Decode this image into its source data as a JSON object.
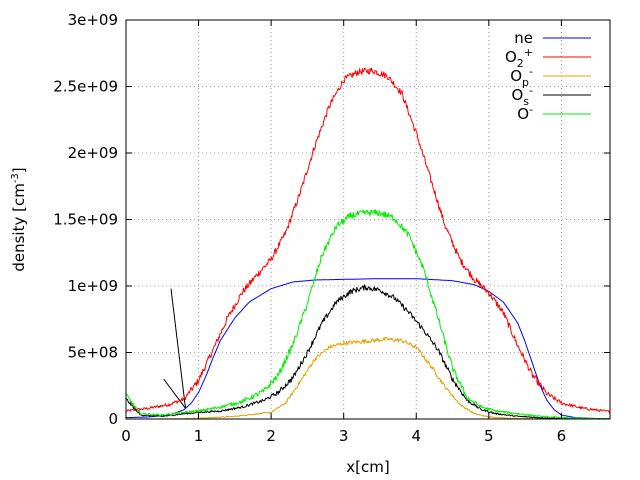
{
  "chart_data": {
    "type": "line",
    "title": "",
    "xlabel": "x[cm]",
    "ylabel": {
      "prefix": "density [cm",
      "sup": "-3",
      "suffix": "]"
    },
    "xlim": [
      0,
      6.67
    ],
    "ylim": [
      0,
      3000000000
    ],
    "grid": true,
    "legend_position": "top-right",
    "xticks": [
      {
        "value": 0,
        "label": "0"
      },
      {
        "value": 1,
        "label": "1"
      },
      {
        "value": 2,
        "label": "2"
      },
      {
        "value": 3,
        "label": "3"
      },
      {
        "value": 4,
        "label": "4"
      },
      {
        "value": 5,
        "label": "5"
      },
      {
        "value": 6,
        "label": "6"
      }
    ],
    "yticks": [
      {
        "value": 0,
        "label": "0"
      },
      {
        "value": 500000000,
        "label": "5e+08"
      },
      {
        "value": 1000000000,
        "label": "1e+09"
      },
      {
        "value": 1500000000,
        "label": "1.5e+09"
      },
      {
        "value": 2000000000,
        "label": "2e+09"
      },
      {
        "value": 2500000000,
        "label": "2.5e+09"
      },
      {
        "value": 3000000000,
        "label": "3e+09"
      }
    ],
    "series": [
      {
        "name": "ne",
        "label_base": "ne",
        "label_sub": "",
        "label_sup": "",
        "color": "#0000ff",
        "noise": 0,
        "x": [
          0,
          0.3,
          0.6,
          0.8,
          0.9,
          1.0,
          1.1,
          1.2,
          1.3,
          1.5,
          1.7,
          2.0,
          2.3,
          2.6,
          3.0,
          3.5,
          4.0,
          4.5,
          4.8,
          5.0,
          5.2,
          5.4,
          5.5,
          5.6,
          5.7,
          5.8,
          5.9,
          6.0,
          6.2,
          6.5,
          6.67
        ],
        "y": [
          10000000,
          15000000,
          30000000,
          70000000,
          120000000,
          200000000,
          320000000,
          460000000,
          590000000,
          760000000,
          880000000,
          980000000,
          1030000000,
          1045000000,
          1050000000,
          1055000000,
          1055000000,
          1040000000,
          1010000000,
          960000000,
          880000000,
          720000000,
          580000000,
          420000000,
          260000000,
          140000000,
          70000000,
          30000000,
          10000000,
          3000000,
          2000000
        ]
      },
      {
        "name": "O2+",
        "label_base": "O",
        "label_sub": "2",
        "label_sup": "+",
        "color": "#ff0000",
        "noise": 25000000,
        "x": [
          0,
          0.3,
          0.6,
          0.8,
          1.0,
          1.2,
          1.4,
          1.6,
          1.8,
          2.0,
          2.2,
          2.4,
          2.6,
          2.8,
          3.0,
          3.2,
          3.4,
          3.6,
          3.8,
          4.0,
          4.2,
          4.4,
          4.6,
          4.8,
          5.0,
          5.2,
          5.4,
          5.6,
          5.8,
          6.0,
          6.3,
          6.67
        ],
        "y": [
          60000000,
          80000000,
          110000000,
          150000000,
          290000000,
          520000000,
          760000000,
          950000000,
          1080000000,
          1200000000,
          1400000000,
          1700000000,
          2050000000,
          2350000000,
          2550000000,
          2610000000,
          2620000000,
          2580000000,
          2450000000,
          2150000000,
          1800000000,
          1450000000,
          1200000000,
          1050000000,
          950000000,
          800000000,
          550000000,
          330000000,
          190000000,
          120000000,
          80000000,
          55000000
        ]
      },
      {
        "name": "Op-",
        "label_base": "O",
        "label_sub": "p",
        "label_sup": "-",
        "color": "#e8a000",
        "noise": 15000000,
        "x": [
          0,
          0.5,
          1.0,
          1.5,
          2.0,
          2.2,
          2.4,
          2.6,
          2.8,
          3.0,
          3.2,
          3.4,
          3.6,
          3.8,
          4.0,
          4.2,
          4.4,
          4.6,
          4.8,
          5.0,
          5.3,
          5.6,
          6.0,
          6.67
        ],
        "y": [
          0,
          0,
          5000000,
          20000000,
          50000000,
          120000000,
          280000000,
          450000000,
          540000000,
          570000000,
          580000000,
          590000000,
          600000000,
          590000000,
          540000000,
          400000000,
          240000000,
          110000000,
          40000000,
          15000000,
          5000000,
          2000000,
          0,
          0
        ]
      },
      {
        "name": "Os-",
        "label_base": "O",
        "label_sub": "s",
        "label_sup": "-",
        "color": "#000000",
        "noise": 20000000,
        "x": [
          0,
          0.2,
          0.5,
          0.8,
          1.0,
          1.3,
          1.6,
          1.9,
          2.1,
          2.3,
          2.5,
          2.7,
          2.9,
          3.1,
          3.3,
          3.5,
          3.7,
          3.9,
          4.1,
          4.3,
          4.5,
          4.7,
          4.9,
          5.1,
          5.4,
          5.7,
          6.0,
          6.3,
          6.67
        ],
        "y": [
          150000000,
          30000000,
          20000000,
          40000000,
          50000000,
          60000000,
          90000000,
          140000000,
          200000000,
          310000000,
          500000000,
          720000000,
          880000000,
          960000000,
          990000000,
          970000000,
          910000000,
          800000000,
          670000000,
          520000000,
          300000000,
          140000000,
          70000000,
          40000000,
          20000000,
          10000000,
          5000000,
          2000000,
          1000000
        ]
      },
      {
        "name": "O-",
        "label_base": "O",
        "label_sub": "",
        "label_sup": "-",
        "color": "#00ee00",
        "noise": 25000000,
        "x": [
          0,
          0.2,
          0.5,
          0.8,
          1.0,
          1.3,
          1.6,
          1.9,
          2.1,
          2.3,
          2.5,
          2.7,
          2.9,
          3.1,
          3.3,
          3.5,
          3.7,
          3.9,
          4.1,
          4.3,
          4.5,
          4.7,
          4.9,
          5.1,
          5.4,
          5.7,
          6.0,
          6.3,
          6.67
        ],
        "y": [
          180000000,
          40000000,
          30000000,
          50000000,
          60000000,
          90000000,
          130000000,
          210000000,
          330000000,
          560000000,
          870000000,
          1230000000,
          1450000000,
          1530000000,
          1550000000,
          1550000000,
          1510000000,
          1380000000,
          1130000000,
          760000000,
          380000000,
          160000000,
          90000000,
          60000000,
          40000000,
          20000000,
          10000000,
          3000000,
          1000000
        ]
      }
    ],
    "annotations": {
      "arrow_lines": [
        {
          "x1": 0.62,
          "y1": 980000000,
          "x2": 0.82,
          "y2": 80000000
        },
        {
          "x1": 0.52,
          "y1": 300000000,
          "x2": 0.82,
          "y2": 80000000
        }
      ]
    }
  }
}
